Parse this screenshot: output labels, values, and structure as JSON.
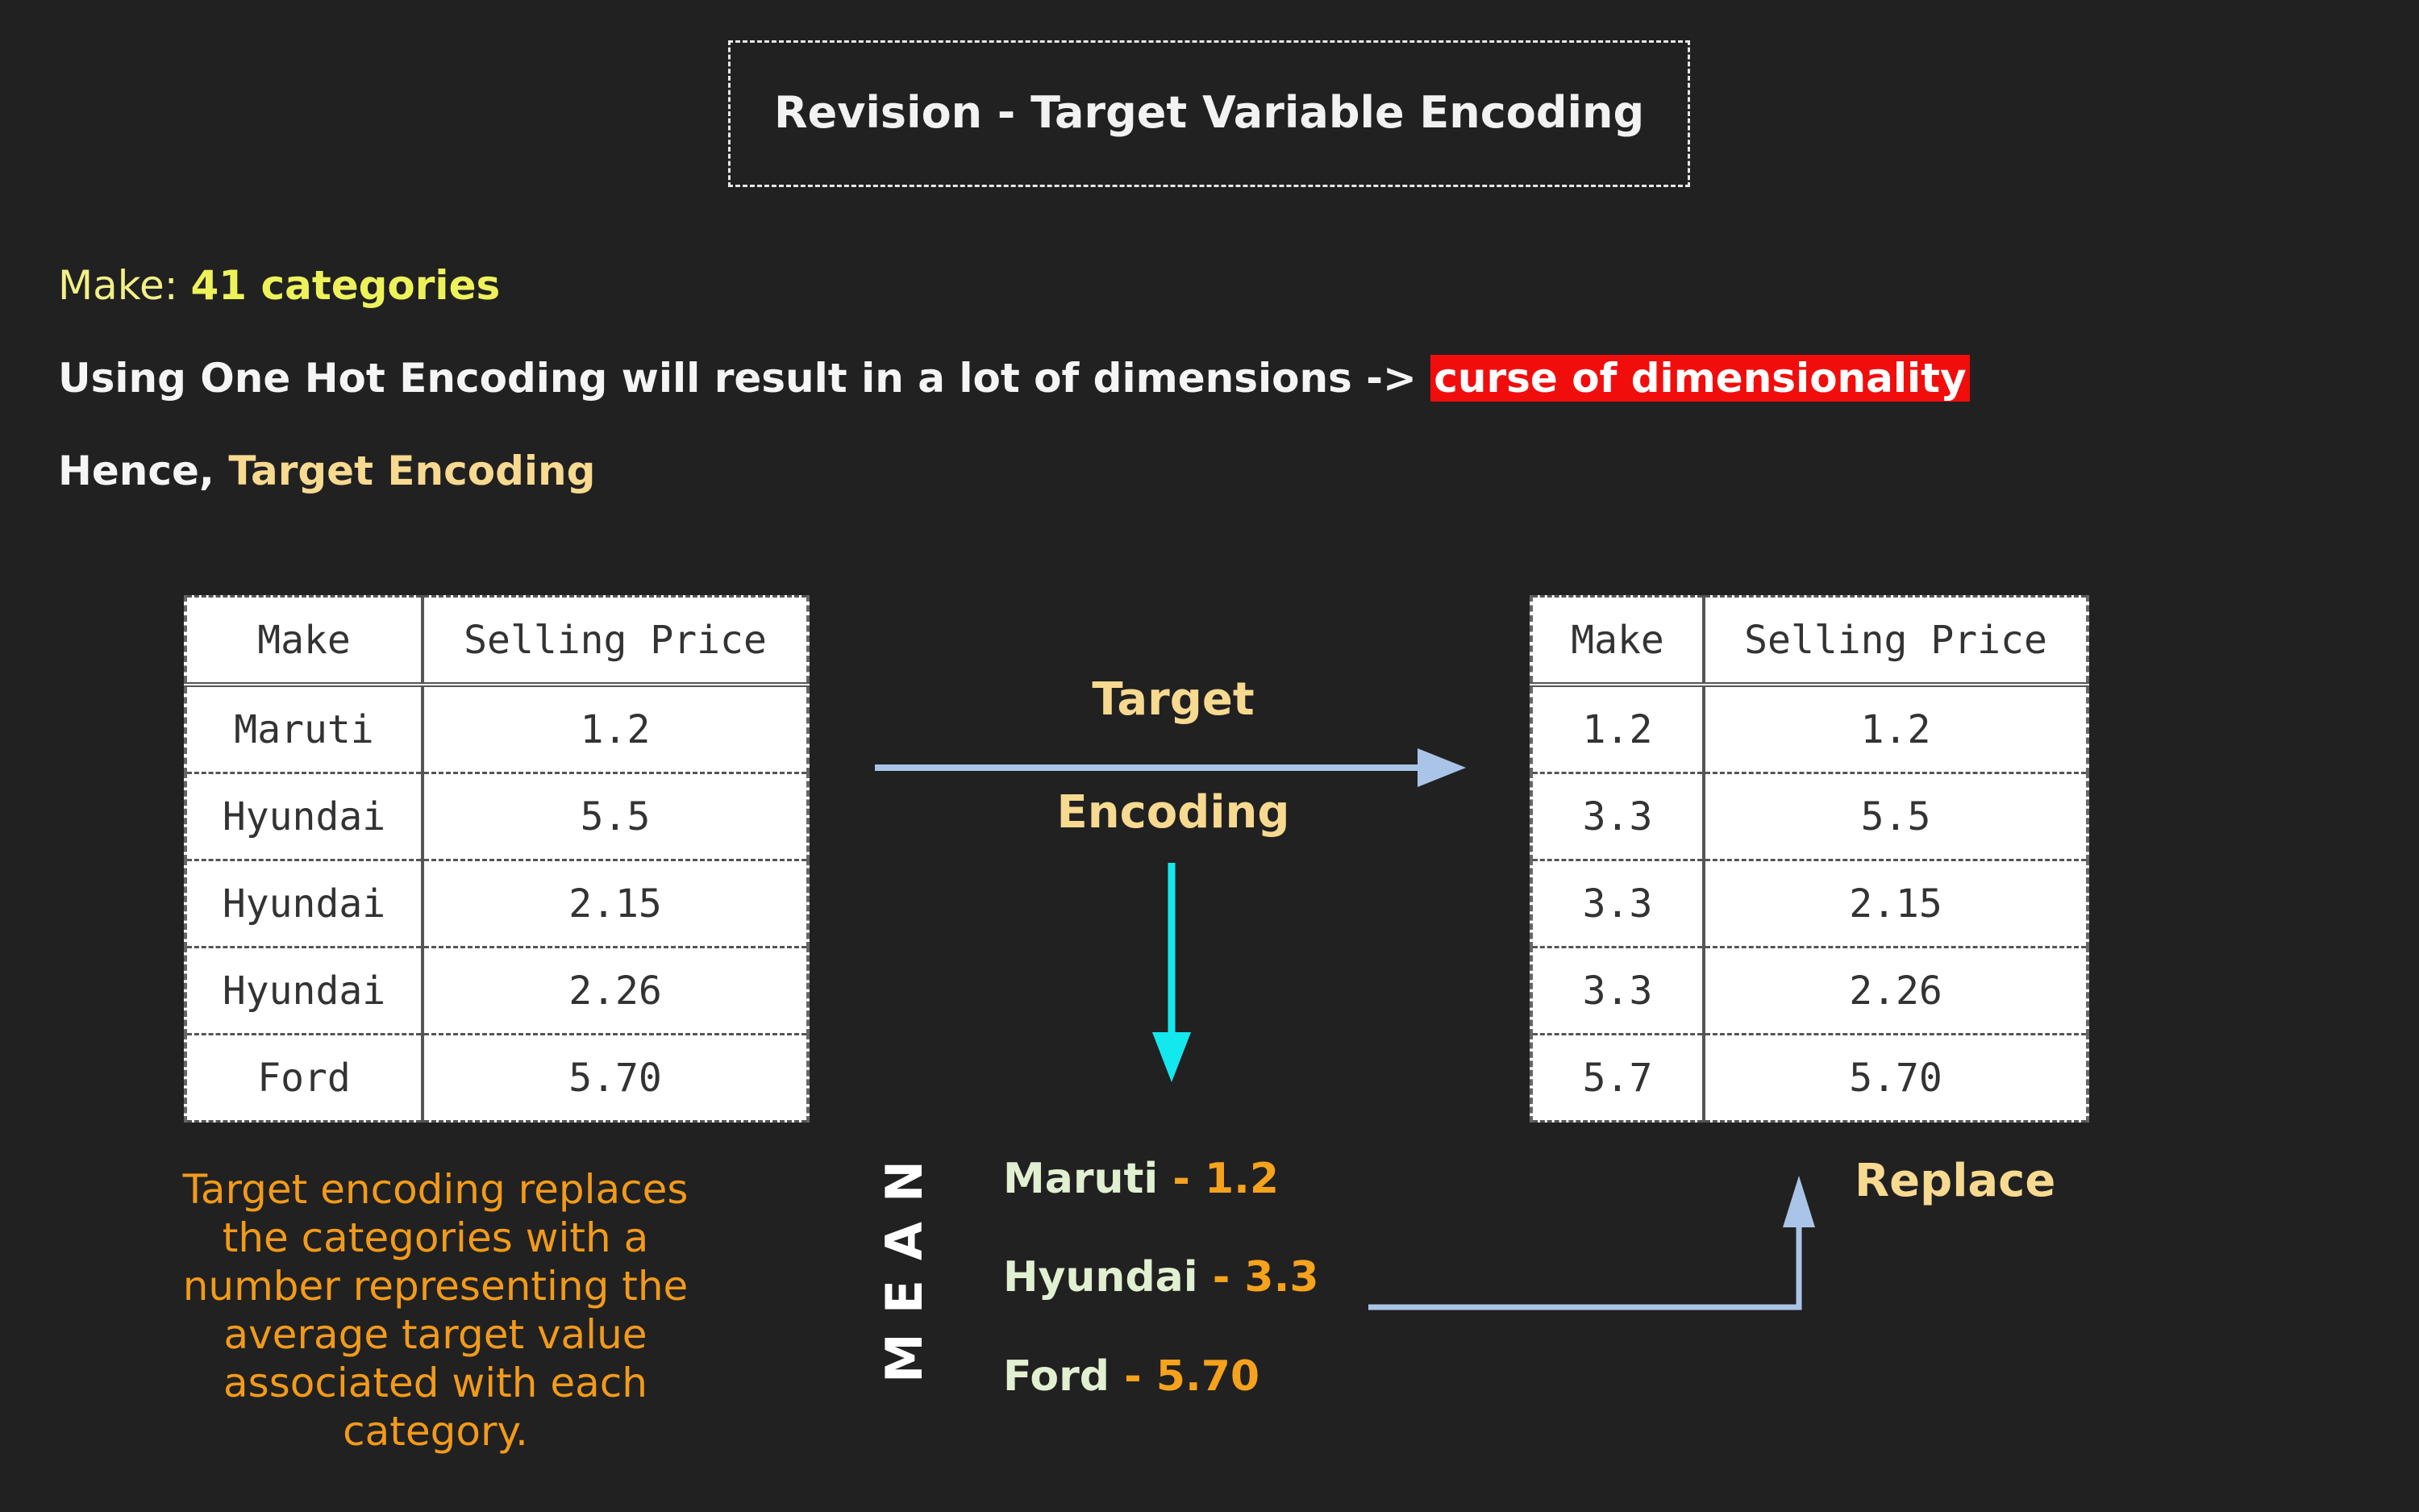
{
  "title": "Revision - Target Variable Encoding",
  "make_line": {
    "label": "Make: ",
    "value": "41 categories"
  },
  "ohe_line": {
    "text": "Using One Hot Encoding will result in a lot of dimensions -> ",
    "highlight": "curse of dimensionality"
  },
  "hence_line": {
    "label": "Hence, ",
    "value": "Target Encoding"
  },
  "left_table": {
    "headers": [
      "Make",
      "Selling Price"
    ],
    "rows": [
      [
        "Maruti",
        "1.2"
      ],
      [
        "Hyundai",
        "5.5"
      ],
      [
        "Hyundai",
        "2.15"
      ],
      [
        "Hyundai",
        "2.26"
      ],
      [
        "Ford",
        "5.70"
      ]
    ]
  },
  "right_table": {
    "headers": [
      "Make",
      "Selling Price"
    ],
    "rows": [
      [
        "1.2",
        "1.2"
      ],
      [
        "3.3",
        "5.5"
      ],
      [
        "3.3",
        "2.15"
      ],
      [
        "3.3",
        "2.26"
      ],
      [
        "5.7",
        "5.70"
      ]
    ]
  },
  "arrow_label": {
    "line1": "Target",
    "line2": "Encoding"
  },
  "mean_label": "MEAN",
  "means": [
    {
      "category": "Maruti",
      "value": " - 1.2"
    },
    {
      "category": "Hyundai",
      "value": " - 3.3"
    },
    {
      "category": "Ford",
      "value": " - 5.70"
    }
  ],
  "description": "Target encoding replaces the categories with a number representing the average target value associated with each category.",
  "replace_label": "Replace",
  "colors": {
    "background": "#212121",
    "arrow_main": "#a9c4e6",
    "arrow_down": "#14e8ef",
    "highlight_red": "#f20d0d",
    "mean_value": "#f6a21d"
  }
}
